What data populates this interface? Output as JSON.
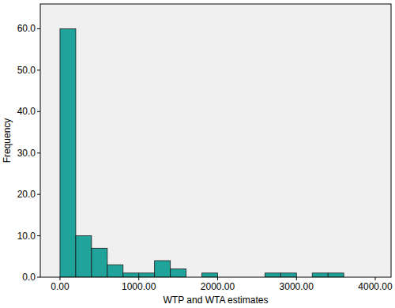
{
  "chart_data": {
    "type": "histogram",
    "x_label": "WTP and WTA estimates",
    "y_label": "Frequency",
    "bins": [
      0,
      200,
      400,
      600,
      800,
      1000,
      1200,
      1400,
      1600,
      1800,
      2000,
      2200,
      2400,
      2600,
      2800,
      3000,
      3200,
      3400,
      3600
    ],
    "values": [
      60,
      10,
      7,
      3,
      1,
      1,
      4,
      2,
      0,
      1,
      0,
      0,
      0,
      1,
      1,
      0,
      1,
      1
    ],
    "color": "#1fa39b",
    "xlim": [
      -250,
      4200
    ],
    "ylim": [
      0,
      66
    ],
    "xticks": [
      {
        "value": 0,
        "label": "0.00"
      },
      {
        "value": 1000,
        "label": "1000.00"
      },
      {
        "value": 2000,
        "label": "2000.00"
      },
      {
        "value": 3000,
        "label": "3000.00"
      },
      {
        "value": 4000,
        "label": "4000.00"
      }
    ],
    "yticks": [
      {
        "value": 0,
        "label": "0.0"
      },
      {
        "value": 10,
        "label": "10.0"
      },
      {
        "value": 20,
        "label": "20.0"
      },
      {
        "value": 30,
        "label": "30.0"
      },
      {
        "value": 40,
        "label": "40.0"
      },
      {
        "value": 50,
        "label": "50.0"
      },
      {
        "value": 60,
        "label": "60.0"
      }
    ],
    "grid": false
  }
}
